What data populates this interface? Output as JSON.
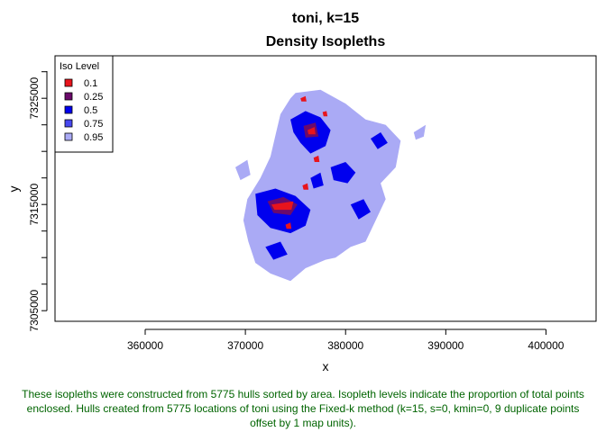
{
  "chart_data": {
    "type": "polygon-map",
    "title": "toni, k=15",
    "subtitle": "Density Isopleths",
    "xlabel": "x",
    "ylabel": "y",
    "xlim": [
      351000,
      405000
    ],
    "ylim": [
      7304000,
      7329000
    ],
    "xticks": [
      360000,
      370000,
      380000,
      390000,
      400000
    ],
    "yticks": [
      7305000,
      7315000,
      7325000
    ],
    "legend": {
      "title": "Iso Level",
      "position": "top-left",
      "entries": [
        {
          "label": "0.1",
          "color": "#e8141c"
        },
        {
          "label": "0.25",
          "color": "#6b0a6b"
        },
        {
          "label": "0.5",
          "color": "#0000ee"
        },
        {
          "label": "0.75",
          "color": "#4848f0"
        },
        {
          "label": "0.95",
          "color": "#aaaaf5"
        }
      ]
    },
    "layers": [
      {
        "level": "0.95",
        "color": "#aaaaf5",
        "polygons": [
          [
            [
              375000,
              7325500
            ],
            [
              377500,
              7325800
            ],
            [
              380000,
              7324500
            ],
            [
              382000,
              7323000
            ],
            [
              384000,
              7322500
            ],
            [
              385500,
              7321000
            ],
            [
              385000,
              7318500
            ],
            [
              383500,
              7317000
            ],
            [
              384000,
              7315500
            ],
            [
              383000,
              7313500
            ],
            [
              382000,
              7311500
            ],
            [
              380500,
              7311000
            ],
            [
              379000,
              7310000
            ],
            [
              378000,
              7309800
            ],
            [
              376000,
              7309000
            ],
            [
              374500,
              7307800
            ],
            [
              372500,
              7308500
            ],
            [
              371000,
              7309500
            ],
            [
              370300,
              7311500
            ],
            [
              369800,
              7313500
            ],
            [
              370200,
              7315500
            ],
            [
              371500,
              7317500
            ],
            [
              372500,
              7319500
            ],
            [
              373000,
              7321500
            ],
            [
              373500,
              7323500
            ],
            [
              374500,
              7325000
            ]
          ],
          [
            [
              369000,
              7318500
            ],
            [
              370200,
              7319200
            ],
            [
              370500,
              7317800
            ],
            [
              369500,
              7317300
            ]
          ],
          [
            [
              386800,
              7321800
            ],
            [
              388000,
              7322500
            ],
            [
              387800,
              7321400
            ],
            [
              387000,
              7321100
            ]
          ]
        ]
      },
      {
        "level": "0.5",
        "color": "#0000ee",
        "polygons": [
          [
            [
              374500,
              7323000
            ],
            [
              376000,
              7323800
            ],
            [
              377500,
              7323200
            ],
            [
              378500,
              7322000
            ],
            [
              378000,
              7320500
            ],
            [
              376500,
              7319800
            ],
            [
              375500,
              7320800
            ],
            [
              374800,
              7321800
            ]
          ],
          [
            [
              371000,
              7316000
            ],
            [
              373000,
              7316500
            ],
            [
              375000,
              7315800
            ],
            [
              376500,
              7314500
            ],
            [
              376000,
              7313000
            ],
            [
              374500,
              7312300
            ],
            [
              372500,
              7312800
            ],
            [
              371200,
              7314000
            ]
          ],
          [
            [
              378500,
              7318500
            ],
            [
              380000,
              7319000
            ],
            [
              381000,
              7318000
            ],
            [
              380200,
              7317000
            ],
            [
              378800,
              7317300
            ]
          ],
          [
            [
              380500,
              7315000
            ],
            [
              381800,
              7315500
            ],
            [
              382500,
              7314300
            ],
            [
              381300,
              7313600
            ]
          ],
          [
            [
              382500,
              7321200
            ],
            [
              383500,
              7321800
            ],
            [
              384200,
              7320800
            ],
            [
              383200,
              7320200
            ]
          ],
          [
            [
              372000,
              7311000
            ],
            [
              373500,
              7311500
            ],
            [
              374200,
              7310300
            ],
            [
              372800,
              7309800
            ]
          ],
          [
            [
              376500,
              7317500
            ],
            [
              377500,
              7318000
            ],
            [
              377800,
              7316800
            ],
            [
              376800,
              7316500
            ]
          ]
        ]
      },
      {
        "level": "0.25",
        "color": "#6b0a6b",
        "polygons": [
          [
            [
              372200,
              7315300
            ],
            [
              373800,
              7315700
            ],
            [
              375200,
              7315000
            ],
            [
              374500,
              7314000
            ],
            [
              372800,
              7314200
            ]
          ],
          [
            [
              375800,
              7322400
            ],
            [
              377000,
              7322700
            ],
            [
              377300,
              7321400
            ],
            [
              376000,
              7321300
            ]
          ]
        ]
      },
      {
        "level": "0.1",
        "color": "#e8141c",
        "polygons": [
          [
            [
              372600,
              7315000
            ],
            [
              374800,
              7315300
            ],
            [
              374600,
              7314500
            ],
            [
              372900,
              7314500
            ]
          ],
          [
            [
              376200,
              7322000
            ],
            [
              376900,
              7322300
            ],
            [
              377000,
              7321600
            ],
            [
              376300,
              7321600
            ]
          ],
          [
            [
              375500,
              7325000
            ],
            [
              376000,
              7325200
            ],
            [
              376100,
              7324700
            ],
            [
              375600,
              7324700
            ]
          ],
          [
            [
              376800,
              7319400
            ],
            [
              377300,
              7319600
            ],
            [
              377400,
              7319000
            ],
            [
              376900,
              7319000
            ]
          ],
          [
            [
              375700,
              7316800
            ],
            [
              376200,
              7317000
            ],
            [
              376300,
              7316400
            ],
            [
              375800,
              7316400
            ]
          ],
          [
            [
              377700,
              7323700
            ],
            [
              378100,
              7323800
            ],
            [
              378200,
              7323300
            ],
            [
              377800,
              7323300
            ]
          ],
          [
            [
              374000,
              7313100
            ],
            [
              374500,
              7313300
            ],
            [
              374600,
              7312700
            ],
            [
              374100,
              7312700
            ]
          ]
        ]
      }
    ]
  },
  "caption": "These isopleths were constructed from 5775 hulls sorted by area. Isopleth levels indicate the proportion of total points enclosed. Hulls created from 5775 locations of toni using the Fixed-k method (k=15, s=0, kmin=0, 9 duplicate points offset by 1 map units)."
}
